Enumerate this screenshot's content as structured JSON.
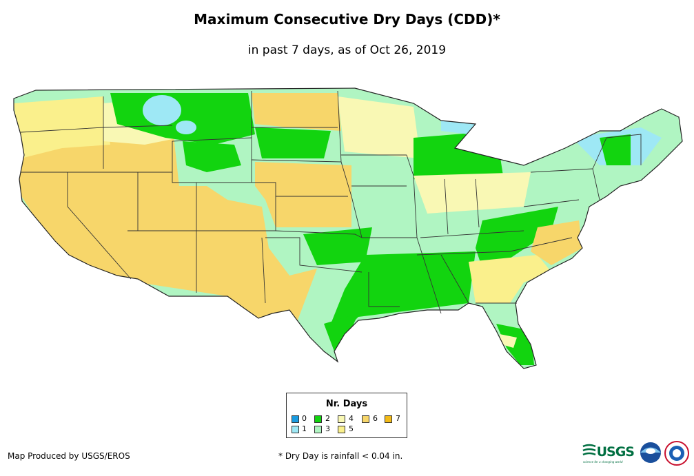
{
  "title": "Maximum Consecutive Dry Days (CDD)*",
  "subtitle": "in past 7 days, as of Oct 26, 2019",
  "legend": {
    "title": "Nr. Days",
    "items": [
      {
        "label": "0",
        "color": "#1a9be0"
      },
      {
        "label": "1",
        "color": "#9ee8f5"
      },
      {
        "label": "2",
        "color": "#12d40f"
      },
      {
        "label": "3",
        "color": "#b0f5c2"
      },
      {
        "label": "4",
        "color": "#f9f8b4"
      },
      {
        "label": "5",
        "color": "#faf08c"
      },
      {
        "label": "6",
        "color": "#f7d66a"
      },
      {
        "label": "7",
        "color": "#f2ba18"
      }
    ]
  },
  "footer": {
    "producer": "Map Produced by USGS/EROS",
    "note": "* Dry Day is rainfall < 0.04 in."
  },
  "logos": {
    "usgs": "USGS",
    "usgs_tagline": "science for a changing world",
    "noaa": "NOAA",
    "nws": "NATIONAL WEATHER SERVICE"
  },
  "map": {
    "region": "Contiguous United States",
    "palette": {
      "outline": "#222222",
      "state_line": "#333333"
    }
  }
}
